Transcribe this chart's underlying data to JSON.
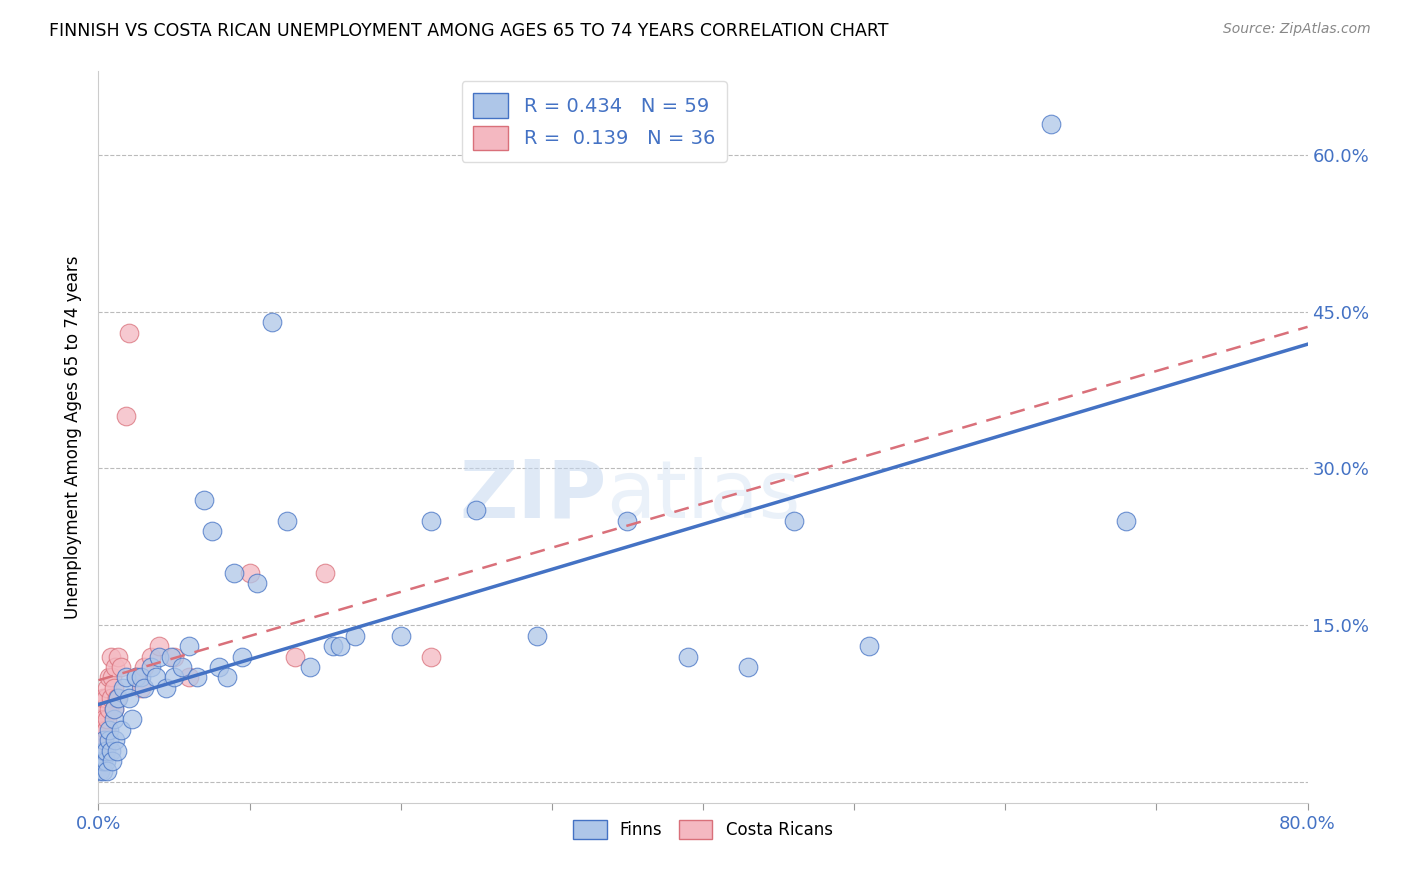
{
  "title": "FINNISH VS COSTA RICAN UNEMPLOYMENT AMONG AGES 65 TO 74 YEARS CORRELATION CHART",
  "source": "Source: ZipAtlas.com",
  "ylabel": "Unemployment Among Ages 65 to 74 years",
  "xlim": [
    0.0,
    0.8
  ],
  "ylim": [
    -0.02,
    0.68
  ],
  "ytick_positions": [
    0.0,
    0.15,
    0.3,
    0.45,
    0.6
  ],
  "ytick_labels": [
    "",
    "15.0%",
    "30.0%",
    "45.0%",
    "60.0%"
  ],
  "finns_R": 0.434,
  "finns_N": 59,
  "costa_R": 0.139,
  "costa_N": 36,
  "finns_color": "#aec6e8",
  "costa_color": "#f4b8c1",
  "finns_line_color": "#4472c4",
  "costa_line_color": "#d9707a",
  "watermark_zip": "ZIP",
  "watermark_atlas": "atlas",
  "legend_finns_label": "Finns",
  "legend_costa_label": "Costa Ricans",
  "finns_x": [
    0.001,
    0.002,
    0.003,
    0.003,
    0.004,
    0.004,
    0.005,
    0.005,
    0.006,
    0.007,
    0.007,
    0.008,
    0.009,
    0.01,
    0.01,
    0.011,
    0.012,
    0.013,
    0.015,
    0.016,
    0.018,
    0.02,
    0.022,
    0.025,
    0.028,
    0.03,
    0.035,
    0.038,
    0.04,
    0.045,
    0.048,
    0.05,
    0.055,
    0.06,
    0.065,
    0.07,
    0.075,
    0.08,
    0.085,
    0.09,
    0.095,
    0.105,
    0.115,
    0.125,
    0.14,
    0.155,
    0.16,
    0.17,
    0.2,
    0.22,
    0.25,
    0.29,
    0.35,
    0.39,
    0.43,
    0.46,
    0.51,
    0.63,
    0.68
  ],
  "finns_y": [
    0.01,
    0.02,
    0.01,
    0.02,
    0.03,
    0.04,
    0.02,
    0.03,
    0.01,
    0.04,
    0.05,
    0.03,
    0.02,
    0.06,
    0.07,
    0.04,
    0.03,
    0.08,
    0.05,
    0.09,
    0.1,
    0.08,
    0.06,
    0.1,
    0.1,
    0.09,
    0.11,
    0.1,
    0.12,
    0.09,
    0.12,
    0.1,
    0.11,
    0.13,
    0.1,
    0.27,
    0.24,
    0.11,
    0.1,
    0.2,
    0.12,
    0.19,
    0.44,
    0.25,
    0.11,
    0.13,
    0.13,
    0.14,
    0.14,
    0.25,
    0.26,
    0.14,
    0.25,
    0.12,
    0.11,
    0.25,
    0.13,
    0.63,
    0.25
  ],
  "costa_x": [
    0.001,
    0.001,
    0.002,
    0.002,
    0.003,
    0.003,
    0.004,
    0.004,
    0.005,
    0.005,
    0.006,
    0.006,
    0.007,
    0.007,
    0.008,
    0.008,
    0.009,
    0.01,
    0.01,
    0.011,
    0.012,
    0.013,
    0.015,
    0.018,
    0.02,
    0.025,
    0.028,
    0.03,
    0.035,
    0.04,
    0.05,
    0.06,
    0.1,
    0.13,
    0.15,
    0.22
  ],
  "costa_y": [
    0.04,
    0.06,
    0.05,
    0.07,
    0.03,
    0.08,
    0.04,
    0.06,
    0.05,
    0.08,
    0.06,
    0.09,
    0.07,
    0.1,
    0.08,
    0.12,
    0.1,
    0.07,
    0.09,
    0.11,
    0.08,
    0.12,
    0.11,
    0.35,
    0.43,
    0.1,
    0.09,
    0.11,
    0.12,
    0.13,
    0.12,
    0.1,
    0.2,
    0.12,
    0.2,
    0.12
  ]
}
